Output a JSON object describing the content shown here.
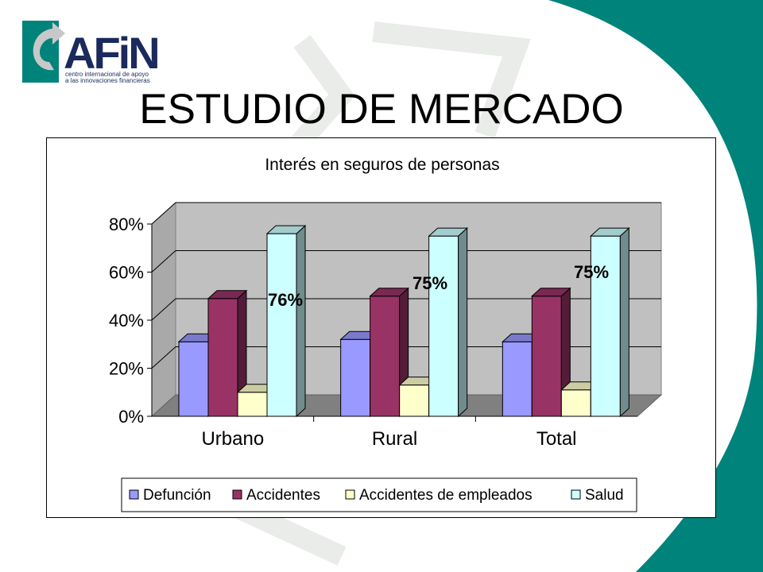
{
  "logo": {
    "brand": "AFiN",
    "tagline_line1": "centro internacional de apoyo",
    "tagline_line2": "a las innovaciones financieras"
  },
  "slide": {
    "title": "ESTUDIO DE MERCADO"
  },
  "colors": {
    "teal_band": "#00837a",
    "defuncion": "#9999ff",
    "accidentes": "#993366",
    "accidentes_empleados": "#ffffcc",
    "salud": "#ccffff",
    "wall": "#c0c0c0",
    "floor": "#808080"
  },
  "chart_data": {
    "type": "bar",
    "title": "Interés en seguros de personas",
    "categories": [
      "Urbano",
      "Rural",
      "Total"
    ],
    "series": [
      {
        "name": "Defunción",
        "values": [
          31,
          32,
          31
        ]
      },
      {
        "name": "Accidentes",
        "values": [
          49,
          50,
          50
        ]
      },
      {
        "name": "Accidentes de empleados",
        "values": [
          10,
          13,
          11
        ]
      },
      {
        "name": "Salud",
        "values": [
          76,
          75,
          75
        ]
      }
    ],
    "data_labels": [
      "76%",
      "75%",
      "75%"
    ],
    "ylim": [
      0,
      80
    ],
    "yticks": [
      "0%",
      "20%",
      "40%",
      "60%",
      "80%"
    ],
    "grid": true,
    "legend_position": "bottom",
    "style": "3d-clustered-column"
  }
}
